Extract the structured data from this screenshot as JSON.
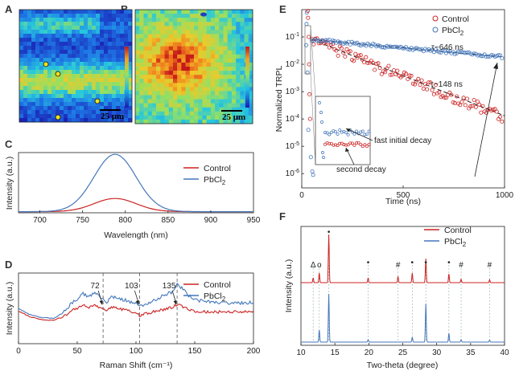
{
  "panels": {
    "A": "A",
    "B": "B",
    "C": "C",
    "D": "D",
    "E": "E",
    "F": "F"
  },
  "colors": {
    "control": "#cc2222",
    "pbcl2": "#4477bb"
  },
  "legend": {
    "control": "Control",
    "pbcl2_base": "PbCl",
    "pbcl2_sub": "2"
  },
  "maps": {
    "A": {
      "scale_bar": "25 μm",
      "palette": "jet-blue"
    },
    "B": {
      "scale_bar": "25 μm",
      "palette": "jet-red"
    }
  },
  "chart_data": [
    {
      "panel": "C",
      "type": "line",
      "xlabel": "Wavelength (nm)",
      "ylabel": "Intensity (a.u.)",
      "xlim": [
        675,
        950
      ],
      "ylim": [
        0,
        1.05
      ],
      "xticks": [
        "700",
        "750",
        "800",
        "850",
        "900",
        "950"
      ],
      "series": [
        {
          "name": "Control",
          "peak_x": 788,
          "peak_y": 0.23,
          "fwhm": 58
        },
        {
          "name": "PbCl2",
          "peak_x": 788,
          "peak_y": 1.0,
          "fwhm": 58
        }
      ]
    },
    {
      "panel": "D",
      "type": "line",
      "xlabel": "Raman Shift (cm⁻¹)",
      "ylabel": "Intensity (a.u.)",
      "xlim": [
        0,
        200
      ],
      "ylim": [
        0,
        1
      ],
      "xticks": [
        "0",
        "50",
        "100",
        "150",
        "200"
      ],
      "annotations": [
        "72",
        "103",
        "135"
      ],
      "annotation_x": [
        72,
        103,
        135
      ],
      "series": [
        {
          "name": "Control",
          "x": [
            0,
            10,
            20,
            30,
            40,
            45,
            50,
            55,
            60,
            65,
            70,
            75,
            80,
            85,
            90,
            95,
            100,
            103,
            110,
            120,
            130,
            135,
            140,
            145,
            150,
            160,
            180,
            200
          ],
          "y": [
            0.46,
            0.38,
            0.34,
            0.33,
            0.4,
            0.48,
            0.5,
            0.54,
            0.52,
            0.55,
            0.5,
            0.47,
            0.52,
            0.5,
            0.48,
            0.46,
            0.44,
            0.4,
            0.43,
            0.47,
            0.51,
            0.56,
            0.52,
            0.49,
            0.46,
            0.45,
            0.45,
            0.45
          ]
        },
        {
          "name": "PbCl2",
          "x": [
            0,
            10,
            20,
            30,
            40,
            45,
            50,
            55,
            60,
            65,
            70,
            75,
            80,
            85,
            90,
            95,
            100,
            103,
            110,
            120,
            130,
            135,
            140,
            145,
            150,
            160,
            180,
            200
          ],
          "y": [
            0.5,
            0.41,
            0.37,
            0.36,
            0.46,
            0.58,
            0.63,
            0.71,
            0.67,
            0.72,
            0.64,
            0.59,
            0.67,
            0.65,
            0.62,
            0.59,
            0.57,
            0.53,
            0.58,
            0.65,
            0.73,
            0.84,
            0.77,
            0.68,
            0.62,
            0.59,
            0.58,
            0.58
          ]
        }
      ]
    },
    {
      "panel": "E",
      "type": "scatter",
      "xlabel": "Time (ns)",
      "ylabel": "Normalized TRPL",
      "yscale": "log",
      "xlim": [
        0,
        1000
      ],
      "ylim": [
        3e-07,
        1
      ],
      "xticks": [
        "0",
        "500",
        "1000"
      ],
      "annotations": {
        "tau_control": "τ~148 ns",
        "tau_pbcl2": "τ~646 ns",
        "fast": "fast initial decay",
        "second": "second decay"
      },
      "series": [
        {
          "name": "Control",
          "tau": 148,
          "a0": 0.08
        },
        {
          "name": "PbCl2",
          "tau": 646,
          "a0": 0.08
        }
      ]
    },
    {
      "panel": "F",
      "type": "line",
      "xlabel": "Two-theta (degree)",
      "ylabel": "Intensity (a.u.)",
      "xlim": [
        10,
        40
      ],
      "xticks": [
        "10",
        "15",
        "20",
        "25",
        "30",
        "35",
        "40"
      ],
      "markers": [
        {
          "x": 11.8,
          "s": "Δ"
        },
        {
          "x": 12.7,
          "s": "o"
        },
        {
          "x": 14.1,
          "s": "•"
        },
        {
          "x": 19.9,
          "s": "•"
        },
        {
          "x": 24.3,
          "s": "#"
        },
        {
          "x": 26.4,
          "s": "•"
        },
        {
          "x": 28.4,
          "s": "•"
        },
        {
          "x": 31.8,
          "s": "•"
        },
        {
          "x": 33.6,
          "s": "#"
        },
        {
          "x": 37.8,
          "s": "#"
        }
      ],
      "series": [
        {
          "name": "Control",
          "peaks": [
            [
              11.8,
              0.1
            ],
            [
              12.7,
              0.2
            ],
            [
              14.1,
              1.0
            ],
            [
              19.9,
              0.1
            ],
            [
              24.3,
              0.13
            ],
            [
              26.4,
              0.2
            ],
            [
              28.4,
              0.5
            ],
            [
              31.8,
              0.18
            ],
            [
              33.6,
              0.07
            ],
            [
              37.8,
              0.06
            ]
          ]
        },
        {
          "name": "PbCl2",
          "peaks": [
            [
              12.7,
              0.25
            ],
            [
              14.1,
              1.0
            ],
            [
              19.9,
              0.05
            ],
            [
              26.4,
              0.1
            ],
            [
              28.4,
              0.8
            ],
            [
              31.8,
              0.18
            ],
            [
              33.6,
              0.05
            ],
            [
              37.8,
              0.04
            ]
          ]
        }
      ]
    }
  ]
}
